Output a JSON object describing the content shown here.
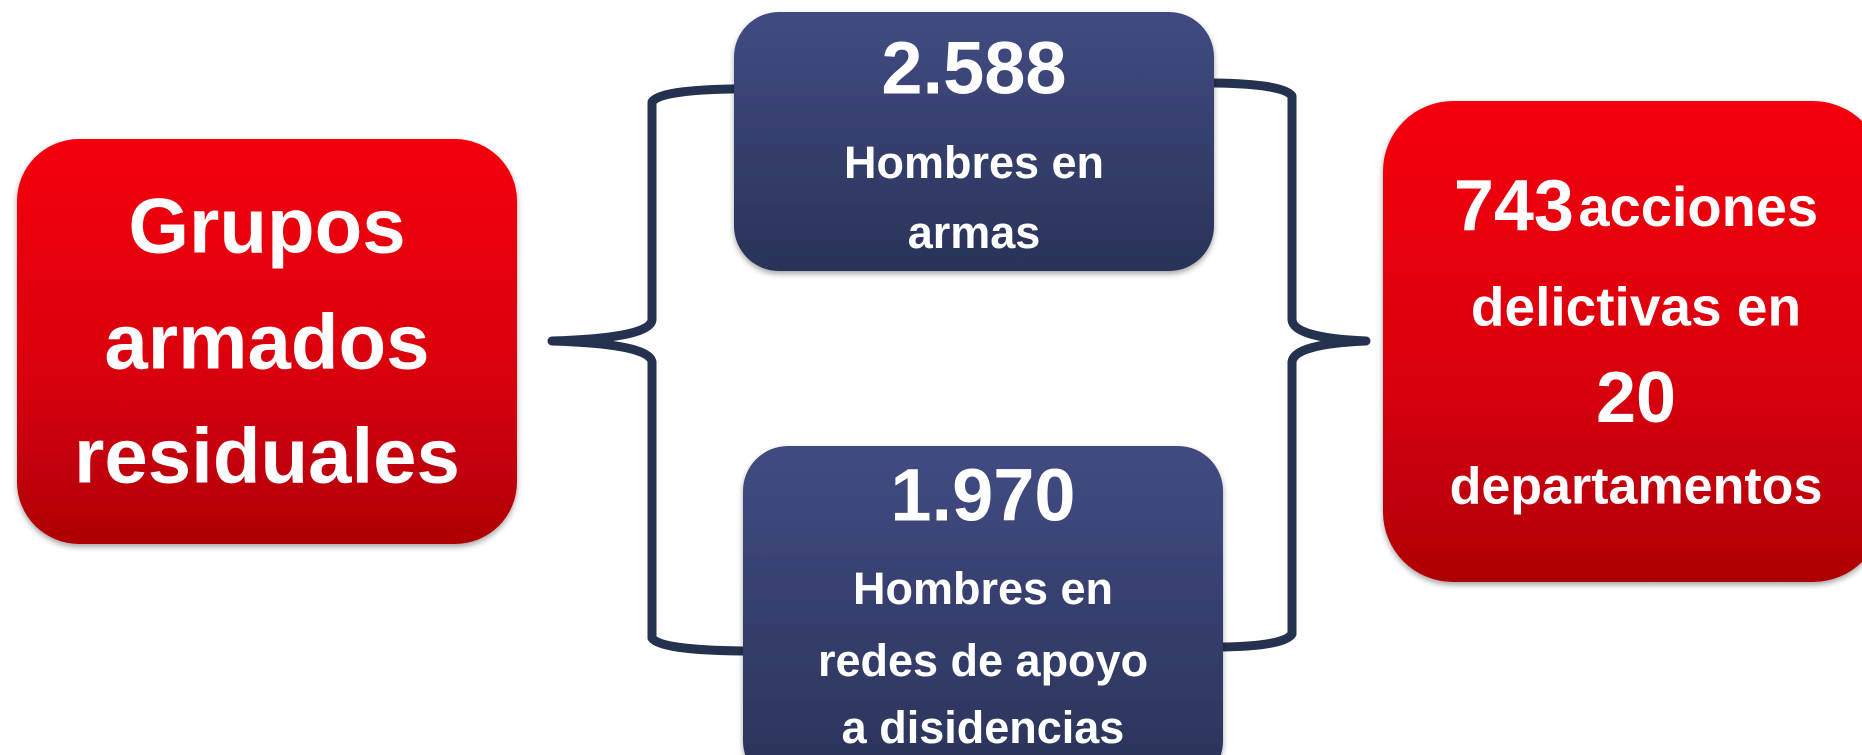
{
  "left": {
    "lines": [
      "Grupos",
      "armados",
      "residuales"
    ]
  },
  "top": {
    "number": "2.588",
    "lines": [
      "Hombres en",
      "armas"
    ]
  },
  "bottom": {
    "number": "1.970",
    "lines": [
      "Hombres en",
      "redes de apoyo",
      "a disidencias"
    ]
  },
  "right": {
    "first": {
      "number": "743",
      "text": "acciones"
    },
    "lines": [
      "delictivas en",
      "20",
      "departamentos"
    ]
  }
}
